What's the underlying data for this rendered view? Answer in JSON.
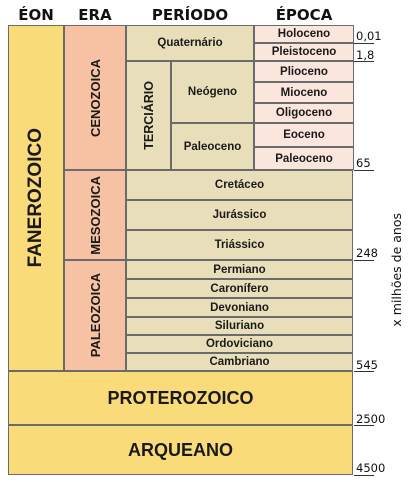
{
  "headers": {
    "eon": "ÉON",
    "era": "ERA",
    "periodo": "PERÍODO",
    "epoca": "ÉPOCA"
  },
  "eons": {
    "fanerozoico": "FANEROZOICO",
    "proterozoico": "PROTEROZOICO",
    "arqueano": "ARQUEANO"
  },
  "eras": {
    "cenozoica": "CENOZOICA",
    "mesozoica": "MESOZOICA",
    "paleozoica": "PALEOZOICA"
  },
  "periods": {
    "quaternario": "Quaternário",
    "terciario": "TERCIÁRIO",
    "neogeno": "Neógeno",
    "paleoceno": "Paleoceno",
    "cretaceo": "Cretáceo",
    "jurassico": "Jurássico",
    "triassico": "Triássico",
    "permiano": "Permiano",
    "caronifero": "Caronífero",
    "devoniano": "Devoniano",
    "siluriano": "Siluriano",
    "ordoviciano": "Ordoviciano",
    "cambriano": "Cambriano"
  },
  "epochs": {
    "holoceno": "Holoceno",
    "pleistoceno": "Pleistoceno",
    "plioceno": "Plioceno",
    "mioceno": "Mioceno",
    "oligoceno": "Oligoceno",
    "eoceno": "Eoceno",
    "paleoceno": "Paleoceno"
  },
  "ages": {
    "a001": "0,01",
    "a18": "1,8",
    "a65": "65",
    "a248": "248",
    "a545": "545",
    "a2500": "2500",
    "a4500": "4500"
  },
  "axis_label": "x milhões de anos"
}
